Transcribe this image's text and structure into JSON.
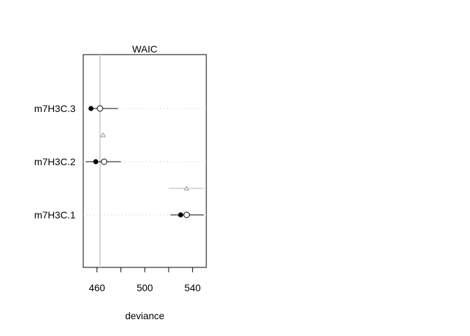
{
  "chart_data": {
    "type": "scatter",
    "title": "WAIC",
    "xlabel": "deviance",
    "ylabel": "",
    "xlim": [
      448.5,
      551.5
    ],
    "xticks": [
      460,
      480,
      500,
      520,
      540
    ],
    "xtick_labels": [
      "460",
      "",
      "500",
      "",
      "540"
    ],
    "models": [
      {
        "label": "m7H3C.3",
        "in_sample": 455.0,
        "waic": 462.5,
        "waic_interval": [
          454.0,
          477.5
        ],
        "dwaic": null,
        "dwaic_interval": null
      },
      {
        "label": "m7H3C.2",
        "in_sample": 459.0,
        "waic": 466.0,
        "waic_interval": [
          450.5,
          480.0
        ],
        "dwaic": 465.0,
        "dwaic_interval": [
          463.5,
          467.0
        ]
      },
      {
        "label": "m7H3C.1",
        "in_sample": 530.0,
        "waic": 535.0,
        "waic_interval": [
          521.5,
          549.5
        ],
        "dwaic": 535.0,
        "dwaic_interval": [
          520.0,
          549.0
        ]
      }
    ],
    "reference_line": 462.5,
    "colors": {
      "points": "#000000",
      "dwaic": "#9a9a9a",
      "reference": "#d3d3d3",
      "dotted": "#c0c0c0"
    }
  }
}
